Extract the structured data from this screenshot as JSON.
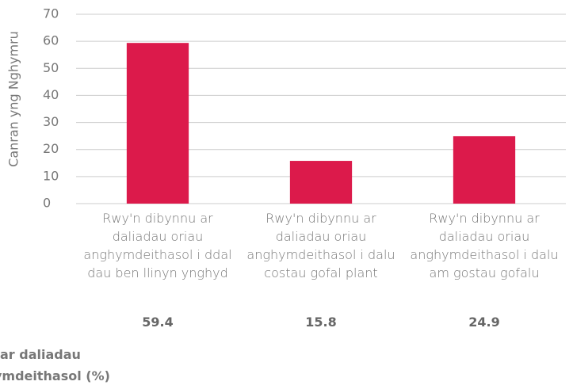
{
  "chart_data": {
    "type": "bar",
    "y_axis_label": "Canran yng Nghymru",
    "categories": [
      "Rwy'n dibynnu ar daliadau oriau anghymdeithasol i ddal dau ben llinyn ynghyd",
      "Rwy'n dibynnu ar daliadau oriau anghymdeithasol i dalu costau gofal plant",
      "Rwy'n dibynnu ar daliadau oriau anghymdeithasol i dalu am gostau gofalu"
    ],
    "values": [
      59.4,
      15.8,
      24.9
    ],
    "color": "#dc1a4b",
    "ylim": [
      0,
      70
    ],
    "yticks": [
      0,
      10,
      20,
      30,
      40,
      50,
      60,
      70
    ],
    "grid": true,
    "footnote_lines": [
      "ar daliadau",
      "ymdeithasol (%)"
    ]
  }
}
